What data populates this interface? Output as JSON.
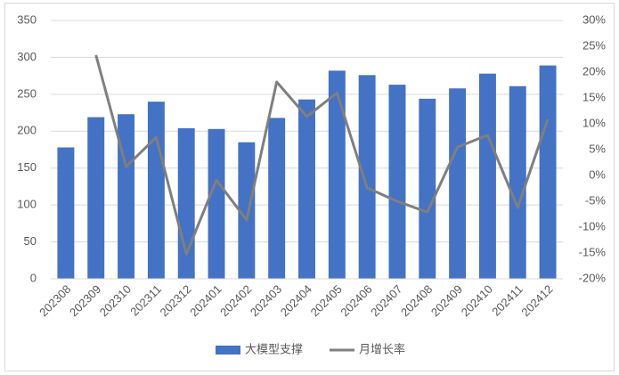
{
  "chart_data": {
    "type": "bar-line",
    "categories": [
      "202308",
      "202309",
      "202310",
      "202311",
      "202312",
      "202401",
      "202402",
      "202403",
      "202404",
      "202405",
      "202406",
      "202407",
      "202408",
      "202409",
      "202410",
      "202411",
      "202412"
    ],
    "series": [
      {
        "name": "大模型支撑",
        "type": "bar",
        "color": "#4472c4",
        "values": [
          178,
          219,
          223,
          240,
          204,
          203,
          185,
          218,
          243,
          282,
          276,
          263,
          244,
          258,
          278,
          261,
          289
        ]
      },
      {
        "name": "月增长率",
        "type": "line",
        "axis": "y2",
        "color": "#7f7f7f",
        "values": [
          null,
          23.3,
          1.7,
          7.4,
          -15.2,
          -0.9,
          -8.6,
          18.1,
          11.4,
          16.0,
          -2.4,
          -5.0,
          -7.1,
          5.5,
          7.8,
          -6.2,
          10.9
        ]
      }
    ],
    "ylim": [
      0,
      350
    ],
    "yticks": [
      0,
      50,
      100,
      150,
      200,
      250,
      300,
      350
    ],
    "y2lim": [
      -20,
      30
    ],
    "y2ticks": [
      {
        "value": -20,
        "label": "-20%"
      },
      {
        "value": -15,
        "label": "-15%"
      },
      {
        "value": -10,
        "label": "-10%"
      },
      {
        "value": -5,
        "label": "-5%"
      },
      {
        "value": 0,
        "label": "0%"
      },
      {
        "value": 5,
        "label": "5%"
      },
      {
        "value": 10,
        "label": "10%"
      },
      {
        "value": 15,
        "label": "15%"
      },
      {
        "value": 20,
        "label": "20%"
      },
      {
        "value": 25,
        "label": "25%"
      },
      {
        "value": 30,
        "label": "30%"
      }
    ],
    "grid": true,
    "legend": "bottom"
  }
}
